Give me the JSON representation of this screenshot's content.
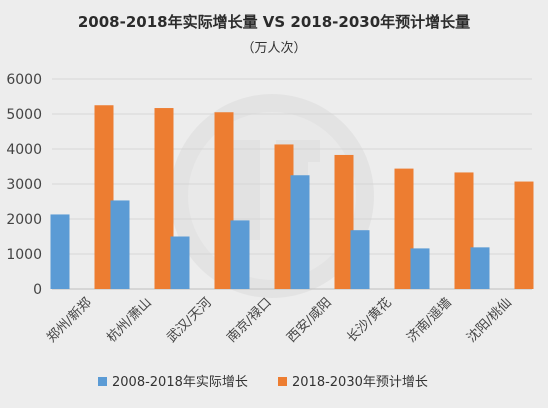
{
  "chart_data": {
    "type": "bar",
    "title": "2008-2018年实际增长量 VS 2018-2030年预计增长量",
    "subtitle": "（万人次）",
    "categories": [
      "郑州/新郑",
      "杭州/萧山",
      "武汉/天河",
      "南京/禄口",
      "西安/咸阳",
      "长沙/黄花",
      "济南/遥墙",
      "沈阳/桃仙"
    ],
    "series": [
      {
        "name": "2008-2018年实际增长",
        "color": "#5b9bd5",
        "values": [
          2130,
          2530,
          1500,
          1960,
          3250,
          1680,
          1160,
          1190
        ]
      },
      {
        "name": "2018-2030年预计增长",
        "color": "#ed7d31",
        "values": [
          5250,
          5170,
          5050,
          4130,
          3830,
          3440,
          3330,
          3070
        ]
      }
    ],
    "y_ticks": [
      "0",
      "1000",
      "2000",
      "3000",
      "4000",
      "5000",
      "6000"
    ],
    "ylim": [
      0,
      6000
    ],
    "grid": true,
    "legend_position": "bottom"
  }
}
